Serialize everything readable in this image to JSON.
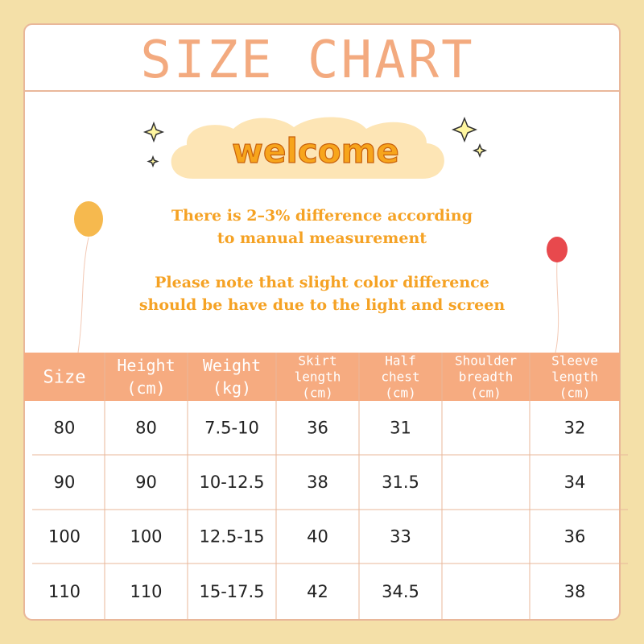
{
  "header": {
    "title": "SIZE CHART"
  },
  "welcome": "welcome",
  "notes": [
    [
      "There is 2–3% difference according",
      "to manual measurement"
    ],
    [
      "Please note that slight color difference",
      "should be have due to the light and screen"
    ]
  ],
  "table": {
    "columns": [
      [
        "Size"
      ],
      [
        "Height",
        "(cm)"
      ],
      [
        "Weight",
        "(kg)"
      ],
      [
        "Skirt",
        "length",
        "(cm)"
      ],
      [
        "Half",
        "chest",
        "(cm)"
      ],
      [
        "Shoulder",
        "breadth",
        "(cm)"
      ],
      [
        "Sleeve",
        "length",
        "(cm)"
      ]
    ],
    "rows": [
      [
        "80",
        "80",
        "7.5-10",
        "36",
        "31",
        null,
        "32"
      ],
      [
        "90",
        "90",
        "10-12.5",
        "38",
        "31.5",
        null,
        "34"
      ],
      [
        "100",
        "100",
        "12.5-15",
        "40",
        "33",
        null,
        "36"
      ],
      [
        "110",
        "110",
        "15-17.5",
        "42",
        "34.5",
        null,
        "38"
      ]
    ]
  }
}
